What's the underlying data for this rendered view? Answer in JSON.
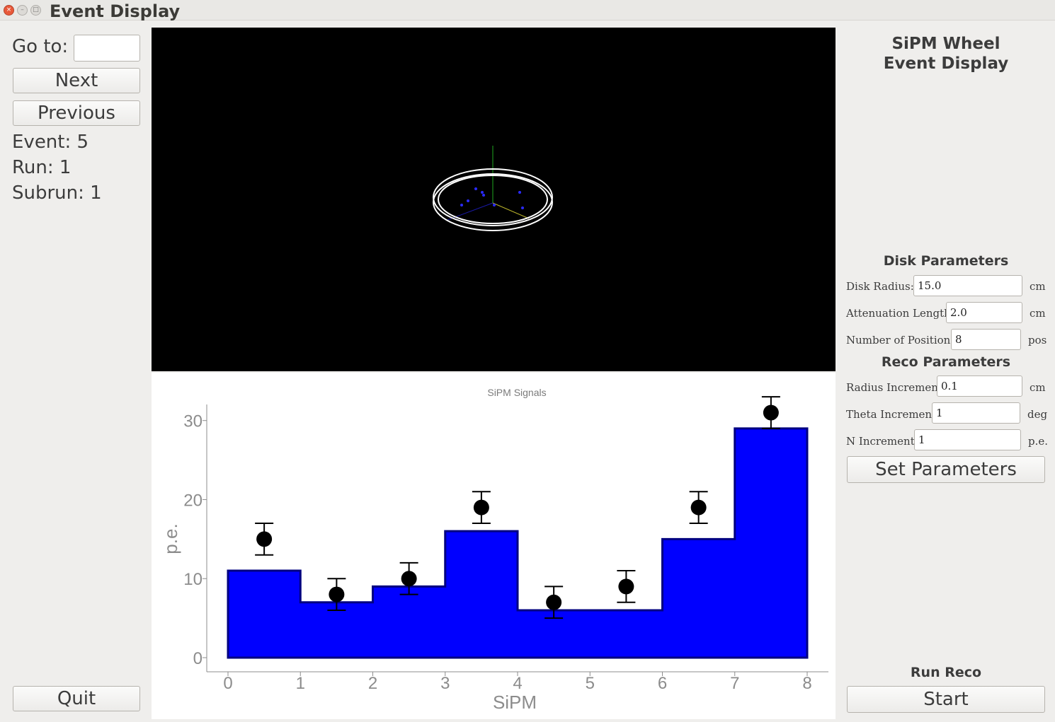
{
  "window": {
    "title": "Event Display"
  },
  "left": {
    "goto_label": "Go to:",
    "goto_value": "",
    "next_label": "Next",
    "previous_label": "Previous",
    "event": "Event: 5",
    "run": "Run: 1",
    "subrun": "Subrun: 1",
    "quit_label": "Quit"
  },
  "right": {
    "title_line1": "SiPM Wheel",
    "title_line2": "Event Display",
    "disk_section": "Disk Parameters",
    "disk_radius_label": "Disk Radius:",
    "disk_radius_value": "15.0",
    "disk_radius_unit": "cm",
    "attenuation_label": "Attenuation Length:",
    "attenuation_value": "2.0",
    "attenuation_unit": "cm",
    "positions_label": "Number of Positions:",
    "positions_value": "8",
    "positions_unit": "pos",
    "reco_section": "Reco Parameters",
    "radius_inc_label": "Radius Increment:",
    "radius_inc_value": "0.1",
    "radius_inc_unit": "cm",
    "theta_inc_label": "Theta Increment:",
    "theta_inc_value": "1",
    "theta_inc_unit": "deg",
    "n_inc_label": "N Increment:",
    "n_inc_value": "1",
    "n_inc_unit": "p.e.",
    "set_params_label": "Set Parameters",
    "run_reco_title": "Run Reco",
    "start_label": "Start"
  },
  "chart_data": {
    "type": "bar",
    "title": "SiPM Signals",
    "xlabel": "SiPM",
    "ylabel": "p.e.",
    "xlim": [
      0,
      8
    ],
    "ylim": [
      0,
      34
    ],
    "x_ticks": [
      "0",
      "1",
      "2",
      "3",
      "4",
      "5",
      "6",
      "7",
      "8"
    ],
    "y_ticks": [
      "0",
      "10",
      "20",
      "30"
    ],
    "colors": {
      "histogram": "#0000ff",
      "points": "#000000"
    },
    "series": [
      {
        "kind": "histogram",
        "bins": [
          0,
          1,
          2,
          3,
          4,
          5,
          6,
          7,
          8
        ],
        "values": [
          11,
          7,
          9,
          16,
          6,
          6,
          15,
          29
        ]
      },
      {
        "kind": "points-with-errors",
        "x": [
          0.5,
          1.5,
          2.5,
          3.5,
          4.5,
          5.5,
          6.5,
          7.5
        ],
        "values": [
          15,
          8,
          10,
          19,
          7,
          9,
          19,
          31
        ],
        "errors": [
          2,
          2,
          2,
          2,
          2,
          2,
          2,
          2
        ]
      }
    ]
  }
}
